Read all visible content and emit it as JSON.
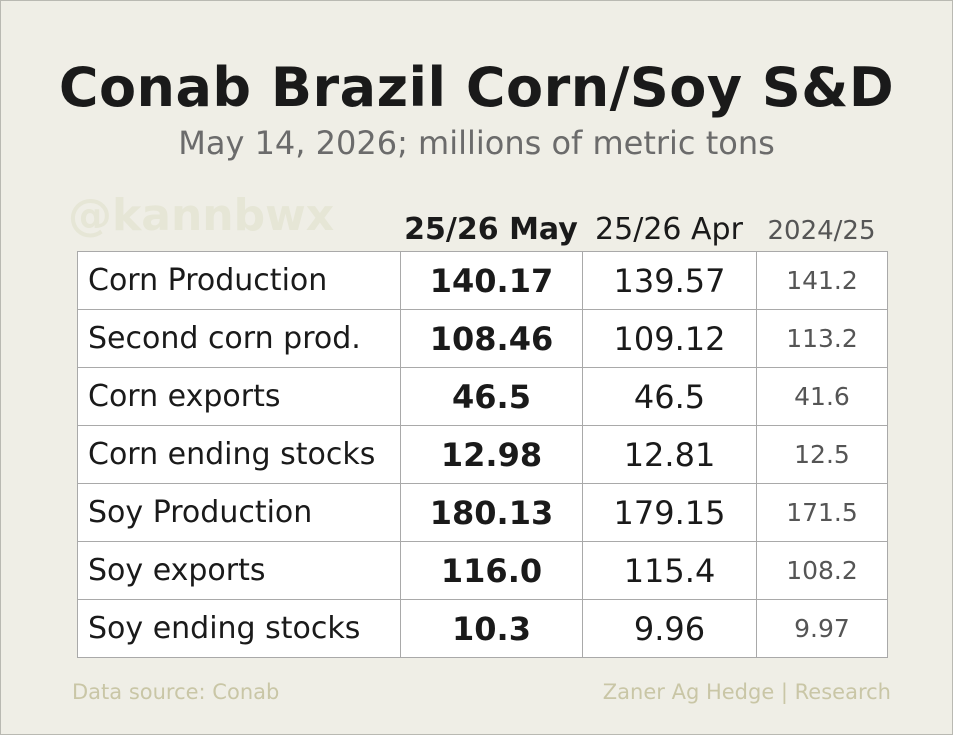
{
  "title": "Conab Brazil Corn/Soy S&D",
  "subtitle": "May 14, 2026; millions of metric tons",
  "watermark": "@kannbwx",
  "chart_data": {
    "type": "table",
    "columns": [
      "25/26 May",
      "25/26 Apr",
      "2024/25"
    ],
    "rows": [
      {
        "label": "Corn Production",
        "values": [
          "140.17",
          "139.57",
          "141.2"
        ]
      },
      {
        "label": "Second corn prod.",
        "values": [
          "108.46",
          "109.12",
          "113.2"
        ]
      },
      {
        "label": "Corn exports",
        "values": [
          "46.5",
          "46.5",
          "41.6"
        ]
      },
      {
        "label": "Corn ending stocks",
        "values": [
          "12.98",
          "12.81",
          "12.5"
        ]
      },
      {
        "label": "Soy Production",
        "values": [
          "180.13",
          "179.15",
          "171.5"
        ]
      },
      {
        "label": "Soy exports",
        "values": [
          "116.0",
          "115.4",
          "108.2"
        ]
      },
      {
        "label": "Soy ending stocks",
        "values": [
          "10.3",
          "9.96",
          "9.97"
        ]
      }
    ]
  },
  "footer": {
    "source": "Data source: Conab",
    "credit": "Zaner Ag Hedge | Research"
  }
}
